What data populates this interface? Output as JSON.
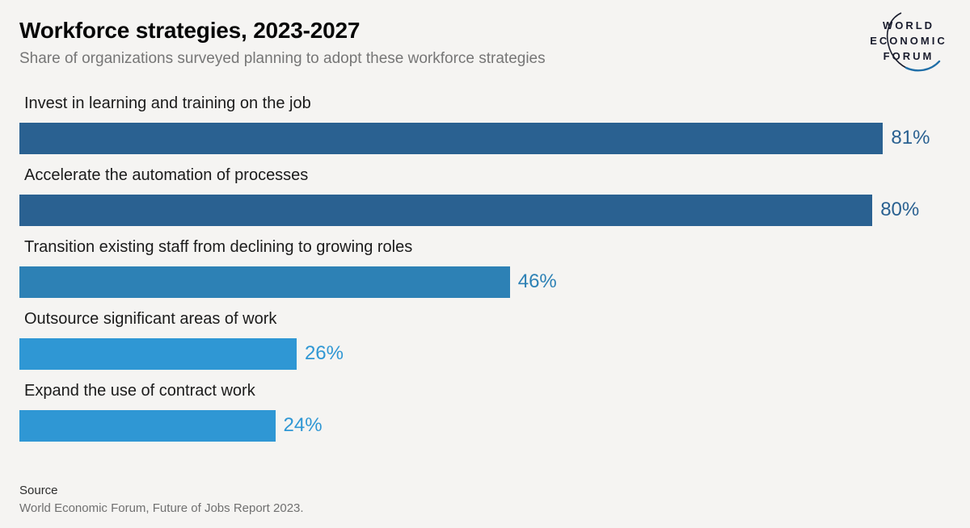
{
  "header": {
    "title": "Workforce strategies, 2023-2027",
    "subtitle": "Share of organizations surveyed planning to adopt these workforce strategies"
  },
  "logo": {
    "lines": [
      "WORLD",
      "ECONOMIC",
      "FORUM"
    ]
  },
  "chart_data": {
    "type": "bar",
    "orientation": "horizontal",
    "title": "Workforce strategies, 2023-2027",
    "subtitle": "Share of organizations surveyed planning to adopt these workforce strategies",
    "categories": [
      "Invest in learning and training on the job",
      "Accelerate the automation of processes",
      "Transition existing staff from declining to growing roles",
      "Outsource significant areas of work",
      "Expand the use of contract work"
    ],
    "values": [
      81,
      80,
      46,
      26,
      24
    ],
    "value_labels": [
      "81%",
      "80%",
      "46%",
      "26%",
      "24%"
    ],
    "bar_colors": [
      "#2a6191",
      "#2a6191",
      "#2d81b5",
      "#2f97d4",
      "#2f97d4"
    ],
    "xlim": [
      0,
      100
    ],
    "grid": false,
    "legend": false
  },
  "source": {
    "label": "Source",
    "text": "World Economic Forum, Future of Jobs Report 2023."
  },
  "colors": {
    "background": "#f5f4f2",
    "bar_dark": "#2a6191",
    "bar_mid": "#2d81b5",
    "bar_light": "#2f97d4",
    "logo_text": "#191c2d",
    "logo_arc_dark": "#1b1e2e",
    "logo_arc_blue": "#1f6ea7"
  }
}
